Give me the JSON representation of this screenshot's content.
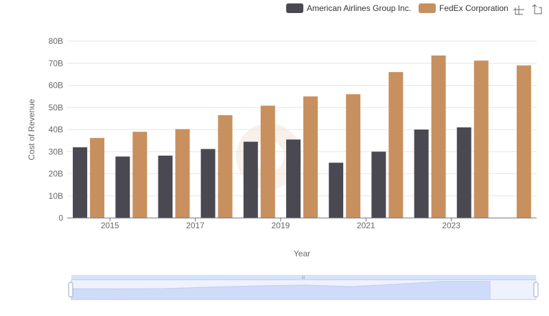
{
  "chart_data": {
    "type": "bar",
    "xlabel": "Year",
    "ylabel": "Cost of Revenue",
    "ylim": [
      0,
      80
    ],
    "y_unit": "B",
    "y_ticks": [
      "0",
      "10B",
      "20B",
      "30B",
      "40B",
      "50B",
      "60B",
      "70B",
      "80B"
    ],
    "x": [
      2014,
      2015,
      2016,
      2017,
      2018,
      2019,
      2020,
      2021,
      2022,
      2023,
      2024
    ],
    "x_tick_labels": [
      "2015",
      "2017",
      "2019",
      "2021",
      "2023"
    ],
    "grid": true,
    "legend_position": "top-right",
    "series": [
      {
        "name": "American Airlines Group Inc.",
        "color": "#4a4952",
        "values": [
          32,
          27.8,
          28.2,
          31.2,
          34.5,
          35.5,
          25,
          30,
          40,
          41,
          null
        ]
      },
      {
        "name": "FedEx Corporation",
        "color": "#c8905e",
        "values": [
          36.2,
          39,
          40.2,
          46.5,
          50.8,
          55,
          56,
          66,
          73.5,
          71.2,
          69
        ]
      }
    ]
  },
  "toolbox": {
    "icons": [
      "zoom-icon",
      "zoom-reset-icon"
    ]
  },
  "datazoom": {
    "handle_grip": "III",
    "fill_color": "#d7e2fb",
    "border_color": "#b9c9ee"
  }
}
